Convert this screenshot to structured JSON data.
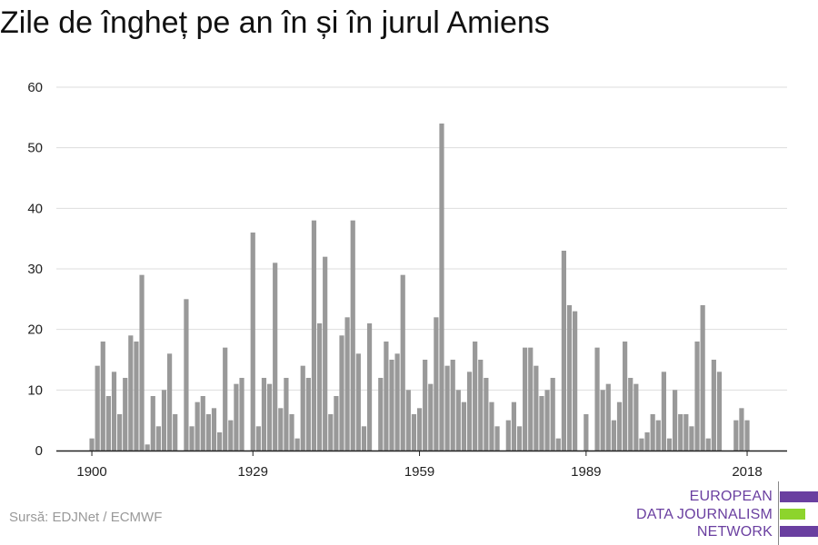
{
  "title": "Zile de îngheț pe an în și în jurul Amiens",
  "source": "Sursă: EDJNet / ECMWF",
  "logo": {
    "lines": [
      "EUROPEAN",
      "DATA JOURNALISM",
      "NETWORK"
    ],
    "colors": {
      "purple": "#6a3fa0",
      "green": "#8dd42c"
    }
  },
  "colors": {
    "bars": "#999999",
    "grid": "#dddddd",
    "axis": "#222222"
  },
  "chart_data": {
    "type": "bar",
    "title": "Zile de îngheț pe an în și în jurul Amiens",
    "xlabel": "",
    "ylabel": "",
    "ylim": [
      0,
      60
    ],
    "yticks": [
      0,
      10,
      20,
      30,
      40,
      50,
      60
    ],
    "xticks": [
      1900,
      1929,
      1959,
      1989,
      2018
    ],
    "xlim": [
      1900,
      2021
    ],
    "grid": true,
    "x": [
      1900,
      1901,
      1902,
      1903,
      1904,
      1905,
      1906,
      1907,
      1908,
      1909,
      1910,
      1911,
      1912,
      1913,
      1914,
      1915,
      1916,
      1917,
      1918,
      1919,
      1920,
      1921,
      1922,
      1923,
      1924,
      1925,
      1926,
      1927,
      1928,
      1929,
      1930,
      1931,
      1932,
      1933,
      1934,
      1935,
      1936,
      1937,
      1938,
      1939,
      1940,
      1941,
      1942,
      1943,
      1944,
      1945,
      1946,
      1947,
      1948,
      1949,
      1950,
      1951,
      1952,
      1953,
      1954,
      1955,
      1956,
      1957,
      1958,
      1959,
      1960,
      1961,
      1962,
      1963,
      1964,
      1965,
      1966,
      1967,
      1968,
      1969,
      1970,
      1971,
      1972,
      1973,
      1974,
      1975,
      1976,
      1977,
      1978,
      1979,
      1980,
      1981,
      1982,
      1983,
      1984,
      1985,
      1986,
      1987,
      1988,
      1989,
      1990,
      1991,
      1992,
      1993,
      1994,
      1995,
      1996,
      1997,
      1998,
      1999,
      2000,
      2001,
      2002,
      2003,
      2004,
      2005,
      2006,
      2007,
      2008,
      2009,
      2010,
      2011,
      2012,
      2013,
      2014,
      2015,
      2016,
      2017,
      2018,
      2019,
      2020,
      2021
    ],
    "values": [
      2,
      14,
      18,
      9,
      13,
      6,
      12,
      19,
      18,
      29,
      1,
      9,
      4,
      10,
      16,
      6,
      0,
      25,
      4,
      8,
      9,
      6,
      7,
      3,
      17,
      5,
      11,
      12,
      0,
      36,
      4,
      12,
      11,
      31,
      7,
      12,
      6,
      2,
      14,
      12,
      38,
      21,
      32,
      6,
      9,
      19,
      22,
      38,
      16,
      4,
      21,
      0,
      12,
      18,
      15,
      16,
      29,
      10,
      6,
      7,
      15,
      11,
      22,
      54,
      14,
      15,
      10,
      8,
      13,
      18,
      15,
      12,
      8,
      4,
      0,
      5,
      8,
      4,
      17,
      17,
      14,
      9,
      10,
      12,
      2,
      33,
      24,
      23,
      0,
      6,
      0,
      17,
      10,
      11,
      5,
      8,
      18,
      12,
      11,
      2,
      3,
      6,
      5,
      13,
      2,
      10,
      6,
      6,
      4,
      18,
      24,
      2,
      15,
      13,
      0,
      0,
      5,
      7,
      5,
      0,
      0,
      0
    ]
  }
}
